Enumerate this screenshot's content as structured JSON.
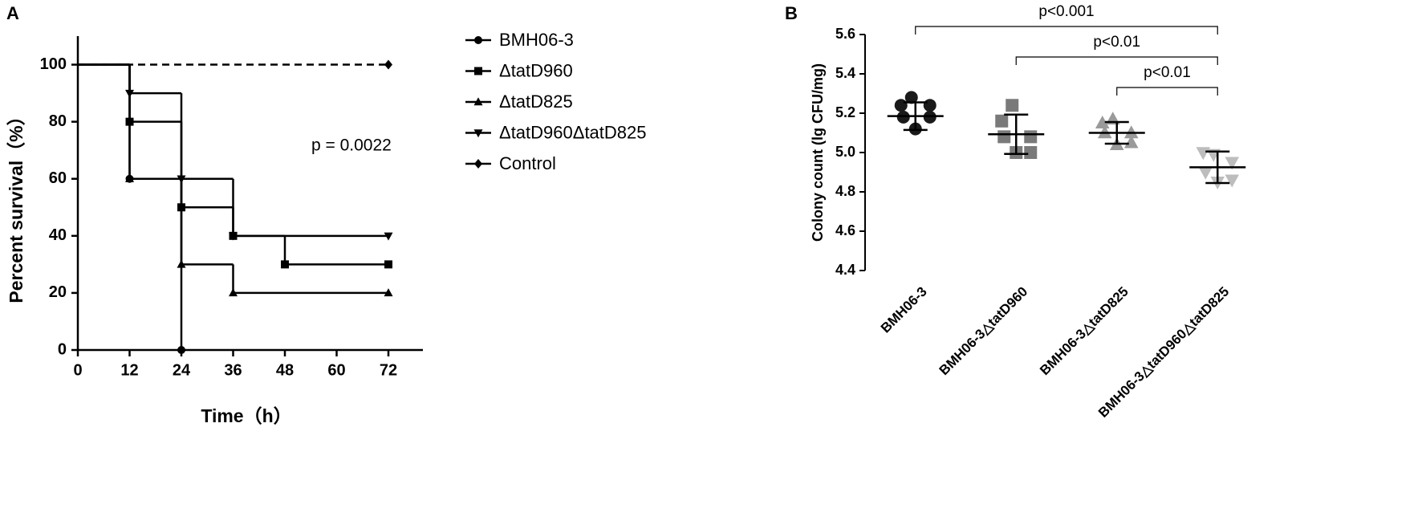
{
  "chart_data": [
    {
      "type": "step",
      "panel_label": "A",
      "xlabel": "Time（h）",
      "ylabel": "Percent survival（%）",
      "annotation": "p = 0.0022",
      "xlim": [
        0,
        80
      ],
      "ylim": [
        0,
        110
      ],
      "xticks": [
        0,
        12,
        24,
        36,
        48,
        60,
        72
      ],
      "yticks": [
        0,
        20,
        40,
        60,
        80,
        100
      ],
      "series": [
        {
          "name": "BMH06-3",
          "color": "#000000",
          "marker": "circle",
          "x": [
            0,
            12,
            24
          ],
          "values": [
            100,
            60,
            0
          ]
        },
        {
          "name": "ΔtatD960",
          "color": "#000000",
          "marker": "square",
          "x": [
            0,
            12,
            24,
            36,
            48,
            72
          ],
          "values": [
            100,
            80,
            50,
            40,
            30,
            30
          ]
        },
        {
          "name": "ΔtatD825",
          "color": "#000000",
          "marker": "triangle-up",
          "x": [
            0,
            12,
            24,
            36,
            72
          ],
          "values": [
            100,
            60,
            30,
            20,
            20
          ]
        },
        {
          "name": "ΔtatD960ΔtatD825",
          "color": "#000000",
          "marker": "triangle-down",
          "x": [
            0,
            12,
            24,
            36,
            72
          ],
          "values": [
            100,
            90,
            60,
            40,
            40
          ]
        },
        {
          "name": "Control",
          "color": "#000000",
          "marker": "diamond",
          "dash": true,
          "x": [
            0,
            72
          ],
          "values": [
            100,
            100
          ]
        }
      ]
    },
    {
      "type": "dot",
      "panel_label": "B",
      "ylabel": "Colony count (lg CFU/mg)",
      "ylim": [
        4.4,
        5.6
      ],
      "yticks": [
        4.4,
        4.6,
        4.8,
        {
          "value": 5,
          "label": "5.0"
        },
        5.2,
        5.4,
        5.6
      ],
      "series": [
        {
          "name": "BMH06-3",
          "color": "#1a1a1a",
          "marker": "circle",
          "values": [
            5.28,
            5.24,
            5.24,
            5.18,
            5.18,
            5.12
          ],
          "mean": 5.185,
          "sd": 0.07
        },
        {
          "name": "BMH06-3△tatD960",
          "color": "#7a7a7a",
          "marker": "square",
          "values": [
            5.24,
            5.16,
            5.08,
            5.08,
            5.0,
            5.0
          ],
          "mean": 5.093,
          "sd": 0.1
        },
        {
          "name": "BMH06-3△tatD825",
          "color": "#9a9a9a",
          "marker": "triangle-up",
          "values": [
            5.17,
            5.15,
            5.1,
            5.1,
            5.05,
            5.04
          ],
          "mean": 5.1,
          "sd": 0.055
        },
        {
          "name": "BMH06-3△tatD960△tatD825",
          "color": "#bdbdbd",
          "marker": "triangle-down",
          "values": [
            4.99,
            5.0,
            4.95,
            4.9,
            4.86,
            4.85
          ],
          "mean": 4.925,
          "sd": 0.08
        }
      ],
      "comparisons": [
        {
          "between": [
            "BMH06-3",
            "BMH06-3△tatD960△tatD825"
          ],
          "label": "p<0.001"
        },
        {
          "between": [
            "BMH06-3△tatD960",
            "BMH06-3△tatD960△tatD825"
          ],
          "label": "p<0.01"
        },
        {
          "between": [
            "BMH06-3△tatD825",
            "BMH06-3△tatD960△tatD825"
          ],
          "label": "p<0.01"
        }
      ]
    }
  ]
}
